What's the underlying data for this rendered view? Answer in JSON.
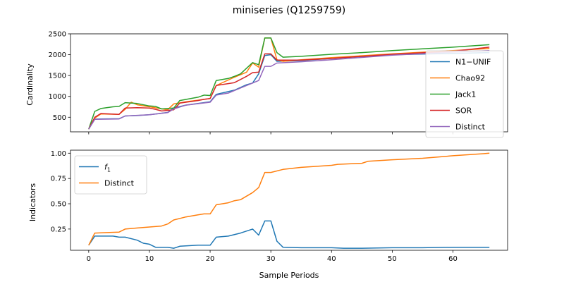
{
  "figure": {
    "title": "miniseries (Q1259759)",
    "xlabel": "Sample Periods"
  },
  "chart_data": [
    {
      "type": "line",
      "ylabel": "Cardinality",
      "xlim": [
        -3,
        69
      ],
      "ylim": [
        150,
        2500
      ],
      "xticks": [
        0,
        10,
        20,
        30,
        40,
        50,
        60
      ],
      "xtick_labels": [
        "",
        "",
        "",
        "",
        "",
        "",
        ""
      ],
      "yticks": [
        500,
        1000,
        1500,
        2000,
        2500
      ],
      "ytick_labels": [
        "500",
        "1000",
        "1500",
        "2000",
        "2500"
      ],
      "legend_position": "lower-right",
      "grid": false,
      "series": [
        {
          "name": "N1−UNIF",
          "color": "#1f77b4",
          "points": [
            [
              0,
              215
            ],
            [
              1,
              455
            ],
            [
              2,
              460
            ],
            [
              5,
              465
            ],
            [
              6,
              530
            ],
            [
              8,
              540
            ],
            [
              10,
              560
            ],
            [
              13,
              615
            ],
            [
              14,
              720
            ],
            [
              16,
              790
            ],
            [
              20,
              870
            ],
            [
              21,
              1050
            ],
            [
              24,
              1150
            ],
            [
              26,
              1280
            ],
            [
              27,
              1320
            ],
            [
              28,
              1540
            ],
            [
              29,
              1980
            ],
            [
              30,
              2000
            ],
            [
              31,
              1840
            ],
            [
              35,
              1860
            ],
            [
              40,
              1910
            ],
            [
              50,
              2000
            ],
            [
              60,
              2030
            ],
            [
              66,
              2050
            ]
          ]
        },
        {
          "name": "Chao92",
          "color": "#ff7f0e",
          "points": [
            [
              0,
              215
            ],
            [
              1,
              480
            ],
            [
              2,
              580
            ],
            [
              5,
              570
            ],
            [
              6,
              690
            ],
            [
              7,
              860
            ],
            [
              8,
              800
            ],
            [
              10,
              750
            ],
            [
              13,
              680
            ],
            [
              14,
              820
            ],
            [
              16,
              870
            ],
            [
              20,
              950
            ],
            [
              21,
              1260
            ],
            [
              24,
              1460
            ],
            [
              26,
              1580
            ],
            [
              27,
              1800
            ],
            [
              28,
              1700
            ],
            [
              29,
              2400
            ],
            [
              30,
              2400
            ],
            [
              31,
              1880
            ],
            [
              32,
              1840
            ],
            [
              35,
              1880
            ],
            [
              40,
              1930
            ],
            [
              50,
              2020
            ],
            [
              60,
              2100
            ],
            [
              66,
              2150
            ]
          ]
        },
        {
          "name": "Jack1",
          "color": "#2ca02c",
          "points": [
            [
              0,
              215
            ],
            [
              1,
              640
            ],
            [
              2,
              710
            ],
            [
              4,
              750
            ],
            [
              5,
              760
            ],
            [
              6,
              850
            ],
            [
              8,
              830
            ],
            [
              10,
              770
            ],
            [
              11,
              760
            ],
            [
              12,
              700
            ],
            [
              14,
              720
            ],
            [
              15,
              900
            ],
            [
              18,
              980
            ],
            [
              19,
              1030
            ],
            [
              20,
              1020
            ],
            [
              21,
              1380
            ],
            [
              23,
              1430
            ],
            [
              24,
              1480
            ],
            [
              25,
              1540
            ],
            [
              27,
              1810
            ],
            [
              28,
              1760
            ],
            [
              29,
              2400
            ],
            [
              30,
              2400
            ],
            [
              31,
              2050
            ],
            [
              32,
              1940
            ],
            [
              35,
              1960
            ],
            [
              40,
              2010
            ],
            [
              45,
              2050
            ],
            [
              50,
              2100
            ],
            [
              55,
              2140
            ],
            [
              60,
              2180
            ],
            [
              66,
              2240
            ]
          ]
        },
        {
          "name": "SOR",
          "color": "#d62728",
          "points": [
            [
              0,
              215
            ],
            [
              1,
              500
            ],
            [
              2,
              590
            ],
            [
              5,
              570
            ],
            [
              6,
              720
            ],
            [
              8,
              730
            ],
            [
              10,
              720
            ],
            [
              11,
              690
            ],
            [
              12,
              650
            ],
            [
              14,
              680
            ],
            [
              15,
              840
            ],
            [
              18,
              900
            ],
            [
              19,
              930
            ],
            [
              20,
              950
            ],
            [
              21,
              1260
            ],
            [
              24,
              1330
            ],
            [
              26,
              1480
            ],
            [
              27,
              1570
            ],
            [
              28,
              1580
            ],
            [
              29,
              2020
            ],
            [
              30,
              2020
            ],
            [
              31,
              1870
            ],
            [
              35,
              1870
            ],
            [
              40,
              1910
            ],
            [
              50,
              2010
            ],
            [
              60,
              2080
            ],
            [
              66,
              2180
            ]
          ]
        },
        {
          "name": "Distinct",
          "color": "#9467bd",
          "points": [
            [
              0,
              215
            ],
            [
              1,
              450
            ],
            [
              5,
              460
            ],
            [
              6,
              530
            ],
            [
              8,
              545
            ],
            [
              10,
              560
            ],
            [
              13,
              610
            ],
            [
              14,
              700
            ],
            [
              16,
              790
            ],
            [
              20,
              860
            ],
            [
              21,
              1030
            ],
            [
              23,
              1080
            ],
            [
              24,
              1140
            ],
            [
              26,
              1260
            ],
            [
              27,
              1320
            ],
            [
              28,
              1380
            ],
            [
              29,
              1720
            ],
            [
              30,
              1720
            ],
            [
              31,
              1800
            ],
            [
              35,
              1830
            ],
            [
              40,
              1880
            ],
            [
              50,
              1990
            ],
            [
              60,
              2060
            ],
            [
              66,
              2100
            ]
          ]
        }
      ]
    },
    {
      "type": "line",
      "ylabel": "Indicators",
      "xlim": [
        -3,
        69
      ],
      "ylim": [
        0.04,
        1.03
      ],
      "xticks": [
        0,
        10,
        20,
        30,
        40,
        50,
        60
      ],
      "xtick_labels": [
        "0",
        "10",
        "20",
        "30",
        "40",
        "50",
        "60"
      ],
      "yticks": [
        0.25,
        0.5,
        0.75,
        1.0
      ],
      "ytick_labels": [
        "0.25",
        "0.50",
        "0.75",
        "1.00"
      ],
      "legend_position": "upper-left",
      "grid": false,
      "series": [
        {
          "name": "f1",
          "color": "#1f77b4",
          "points": [
            [
              0,
              0.09
            ],
            [
              1,
              0.18
            ],
            [
              4,
              0.18
            ],
            [
              5,
              0.17
            ],
            [
              6,
              0.17
            ],
            [
              8,
              0.14
            ],
            [
              9,
              0.11
            ],
            [
              10,
              0.1
            ],
            [
              11,
              0.07
            ],
            [
              13,
              0.07
            ],
            [
              14,
              0.06
            ],
            [
              15,
              0.08
            ],
            [
              18,
              0.09
            ],
            [
              19,
              0.09
            ],
            [
              20,
              0.09
            ],
            [
              21,
              0.17
            ],
            [
              23,
              0.18
            ],
            [
              25,
              0.21
            ],
            [
              27,
              0.25
            ],
            [
              28,
              0.19
            ],
            [
              29,
              0.33
            ],
            [
              30,
              0.33
            ],
            [
              31,
              0.13
            ],
            [
              32,
              0.07
            ],
            [
              35,
              0.065
            ],
            [
              40,
              0.065
            ],
            [
              42,
              0.06
            ],
            [
              45,
              0.06
            ],
            [
              50,
              0.065
            ],
            [
              55,
              0.065
            ],
            [
              60,
              0.07
            ],
            [
              66,
              0.07
            ]
          ]
        },
        {
          "name": "Distinct",
          "color": "#ff7f0e",
          "points": [
            [
              0,
              0.09
            ],
            [
              1,
              0.21
            ],
            [
              3,
              0.215
            ],
            [
              5,
              0.22
            ],
            [
              6,
              0.25
            ],
            [
              8,
              0.26
            ],
            [
              10,
              0.27
            ],
            [
              12,
              0.28
            ],
            [
              13,
              0.3
            ],
            [
              14,
              0.34
            ],
            [
              16,
              0.37
            ],
            [
              18,
              0.39
            ],
            [
              19,
              0.4
            ],
            [
              20,
              0.4
            ],
            [
              21,
              0.49
            ],
            [
              23,
              0.51
            ],
            [
              24,
              0.53
            ],
            [
              25,
              0.54
            ],
            [
              27,
              0.61
            ],
            [
              28,
              0.66
            ],
            [
              29,
              0.81
            ],
            [
              30,
              0.81
            ],
            [
              32,
              0.84
            ],
            [
              35,
              0.86
            ],
            [
              40,
              0.88
            ],
            [
              41,
              0.89
            ],
            [
              45,
              0.9
            ],
            [
              46,
              0.92
            ],
            [
              50,
              0.935
            ],
            [
              55,
              0.95
            ],
            [
              60,
              0.975
            ],
            [
              65,
              0.995
            ],
            [
              66,
              1.0
            ]
          ]
        }
      ]
    }
  ]
}
